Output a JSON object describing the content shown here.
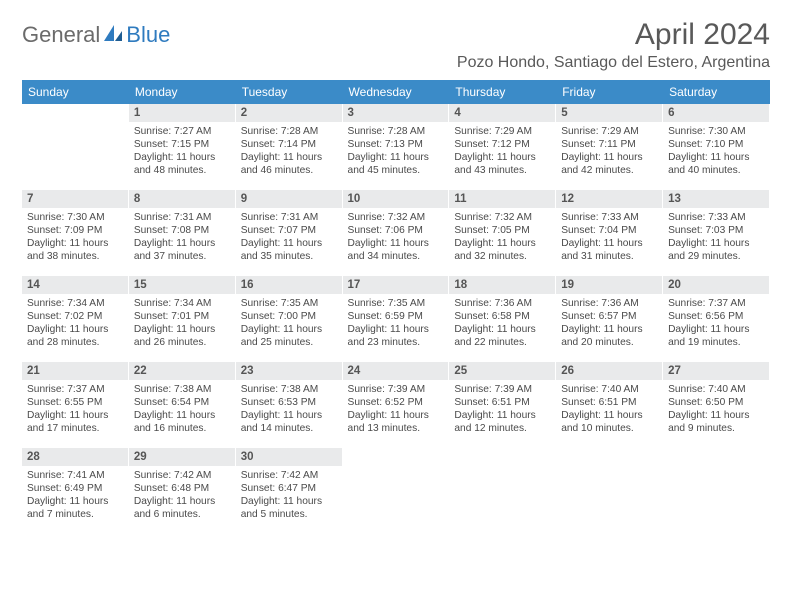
{
  "logo": {
    "part1": "General",
    "part2": "Blue"
  },
  "title": "April 2024",
  "location": "Pozo Hondo, Santiago del Estero, Argentina",
  "colors": {
    "header_bg": "#3b8bc8",
    "header_fg": "#ffffff",
    "daynum_bg": "#e9eaeb",
    "text": "#4a4a4a",
    "logo_gray": "#6b6b6b",
    "logo_blue": "#2f7bbf"
  },
  "weekdays": [
    "Sunday",
    "Monday",
    "Tuesday",
    "Wednesday",
    "Thursday",
    "Friday",
    "Saturday"
  ],
  "weeks": [
    [
      {
        "n": "",
        "lines": [
          "",
          "",
          "",
          ""
        ]
      },
      {
        "n": "1",
        "lines": [
          "Sunrise: 7:27 AM",
          "Sunset: 7:15 PM",
          "Daylight: 11 hours",
          "and 48 minutes."
        ]
      },
      {
        "n": "2",
        "lines": [
          "Sunrise: 7:28 AM",
          "Sunset: 7:14 PM",
          "Daylight: 11 hours",
          "and 46 minutes."
        ]
      },
      {
        "n": "3",
        "lines": [
          "Sunrise: 7:28 AM",
          "Sunset: 7:13 PM",
          "Daylight: 11 hours",
          "and 45 minutes."
        ]
      },
      {
        "n": "4",
        "lines": [
          "Sunrise: 7:29 AM",
          "Sunset: 7:12 PM",
          "Daylight: 11 hours",
          "and 43 minutes."
        ]
      },
      {
        "n": "5",
        "lines": [
          "Sunrise: 7:29 AM",
          "Sunset: 7:11 PM",
          "Daylight: 11 hours",
          "and 42 minutes."
        ]
      },
      {
        "n": "6",
        "lines": [
          "Sunrise: 7:30 AM",
          "Sunset: 7:10 PM",
          "Daylight: 11 hours",
          "and 40 minutes."
        ]
      }
    ],
    [
      {
        "n": "7",
        "lines": [
          "Sunrise: 7:30 AM",
          "Sunset: 7:09 PM",
          "Daylight: 11 hours",
          "and 38 minutes."
        ]
      },
      {
        "n": "8",
        "lines": [
          "Sunrise: 7:31 AM",
          "Sunset: 7:08 PM",
          "Daylight: 11 hours",
          "and 37 minutes."
        ]
      },
      {
        "n": "9",
        "lines": [
          "Sunrise: 7:31 AM",
          "Sunset: 7:07 PM",
          "Daylight: 11 hours",
          "and 35 minutes."
        ]
      },
      {
        "n": "10",
        "lines": [
          "Sunrise: 7:32 AM",
          "Sunset: 7:06 PM",
          "Daylight: 11 hours",
          "and 34 minutes."
        ]
      },
      {
        "n": "11",
        "lines": [
          "Sunrise: 7:32 AM",
          "Sunset: 7:05 PM",
          "Daylight: 11 hours",
          "and 32 minutes."
        ]
      },
      {
        "n": "12",
        "lines": [
          "Sunrise: 7:33 AM",
          "Sunset: 7:04 PM",
          "Daylight: 11 hours",
          "and 31 minutes."
        ]
      },
      {
        "n": "13",
        "lines": [
          "Sunrise: 7:33 AM",
          "Sunset: 7:03 PM",
          "Daylight: 11 hours",
          "and 29 minutes."
        ]
      }
    ],
    [
      {
        "n": "14",
        "lines": [
          "Sunrise: 7:34 AM",
          "Sunset: 7:02 PM",
          "Daylight: 11 hours",
          "and 28 minutes."
        ]
      },
      {
        "n": "15",
        "lines": [
          "Sunrise: 7:34 AM",
          "Sunset: 7:01 PM",
          "Daylight: 11 hours",
          "and 26 minutes."
        ]
      },
      {
        "n": "16",
        "lines": [
          "Sunrise: 7:35 AM",
          "Sunset: 7:00 PM",
          "Daylight: 11 hours",
          "and 25 minutes."
        ]
      },
      {
        "n": "17",
        "lines": [
          "Sunrise: 7:35 AM",
          "Sunset: 6:59 PM",
          "Daylight: 11 hours",
          "and 23 minutes."
        ]
      },
      {
        "n": "18",
        "lines": [
          "Sunrise: 7:36 AM",
          "Sunset: 6:58 PM",
          "Daylight: 11 hours",
          "and 22 minutes."
        ]
      },
      {
        "n": "19",
        "lines": [
          "Sunrise: 7:36 AM",
          "Sunset: 6:57 PM",
          "Daylight: 11 hours",
          "and 20 minutes."
        ]
      },
      {
        "n": "20",
        "lines": [
          "Sunrise: 7:37 AM",
          "Sunset: 6:56 PM",
          "Daylight: 11 hours",
          "and 19 minutes."
        ]
      }
    ],
    [
      {
        "n": "21",
        "lines": [
          "Sunrise: 7:37 AM",
          "Sunset: 6:55 PM",
          "Daylight: 11 hours",
          "and 17 minutes."
        ]
      },
      {
        "n": "22",
        "lines": [
          "Sunrise: 7:38 AM",
          "Sunset: 6:54 PM",
          "Daylight: 11 hours",
          "and 16 minutes."
        ]
      },
      {
        "n": "23",
        "lines": [
          "Sunrise: 7:38 AM",
          "Sunset: 6:53 PM",
          "Daylight: 11 hours",
          "and 14 minutes."
        ]
      },
      {
        "n": "24",
        "lines": [
          "Sunrise: 7:39 AM",
          "Sunset: 6:52 PM",
          "Daylight: 11 hours",
          "and 13 minutes."
        ]
      },
      {
        "n": "25",
        "lines": [
          "Sunrise: 7:39 AM",
          "Sunset: 6:51 PM",
          "Daylight: 11 hours",
          "and 12 minutes."
        ]
      },
      {
        "n": "26",
        "lines": [
          "Sunrise: 7:40 AM",
          "Sunset: 6:51 PM",
          "Daylight: 11 hours",
          "and 10 minutes."
        ]
      },
      {
        "n": "27",
        "lines": [
          "Sunrise: 7:40 AM",
          "Sunset: 6:50 PM",
          "Daylight: 11 hours",
          "and 9 minutes."
        ]
      }
    ],
    [
      {
        "n": "28",
        "lines": [
          "Sunrise: 7:41 AM",
          "Sunset: 6:49 PM",
          "Daylight: 11 hours",
          "and 7 minutes."
        ]
      },
      {
        "n": "29",
        "lines": [
          "Sunrise: 7:42 AM",
          "Sunset: 6:48 PM",
          "Daylight: 11 hours",
          "and 6 minutes."
        ]
      },
      {
        "n": "30",
        "lines": [
          "Sunrise: 7:42 AM",
          "Sunset: 6:47 PM",
          "Daylight: 11 hours",
          "and 5 minutes."
        ]
      },
      {
        "n": "",
        "lines": [
          "",
          "",
          "",
          ""
        ]
      },
      {
        "n": "",
        "lines": [
          "",
          "",
          "",
          ""
        ]
      },
      {
        "n": "",
        "lines": [
          "",
          "",
          "",
          ""
        ]
      },
      {
        "n": "",
        "lines": [
          "",
          "",
          "",
          ""
        ]
      }
    ]
  ]
}
